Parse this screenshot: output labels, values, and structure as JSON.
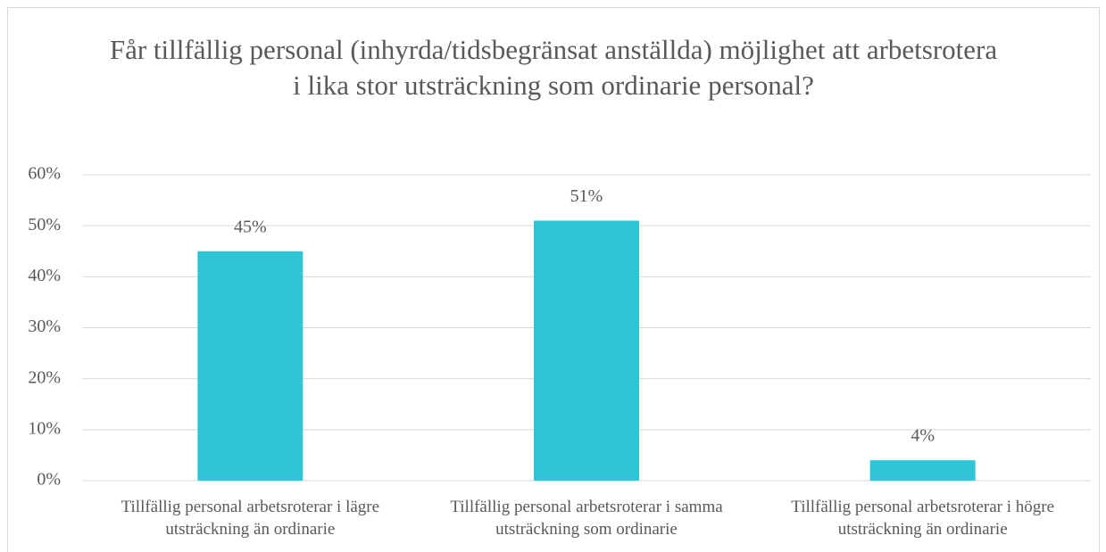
{
  "chart_data": {
    "type": "bar",
    "title": "Får tillfällig personal (inhyrda/tidsbegränsat anställda) möjlighet att arbetsrotera i lika stor utsträckning som ordinarie personal?",
    "categories": [
      "Tillfällig personal arbetsroterar i lägre utsträckning än ordinarie",
      "Tillfällig personal arbetsroterar i samma utsträckning som ordinarie",
      "Tillfällig personal arbetsroterar i högre utsträckning än ordinarie"
    ],
    "values": [
      45,
      51,
      4
    ],
    "value_labels": [
      "45%",
      "51%",
      "4%"
    ],
    "color": "#2ec6d6",
    "ylim": [
      0,
      60
    ],
    "yticks": [
      {
        "value": 0,
        "label": "0%"
      },
      {
        "value": 10,
        "label": "10%"
      },
      {
        "value": 20,
        "label": "20%"
      },
      {
        "value": 30,
        "label": "30%"
      },
      {
        "value": 40,
        "label": "40%"
      },
      {
        "value": 50,
        "label": "50%"
      },
      {
        "value": 60,
        "label": "60%"
      }
    ],
    "grid": true
  }
}
